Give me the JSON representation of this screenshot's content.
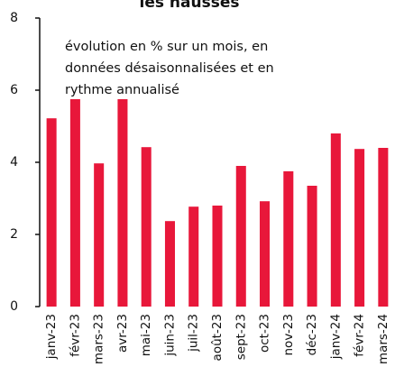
{
  "chart_data": {
    "type": "bar",
    "title": "les hausses",
    "annotation": [
      "évolution en % sur un mois, en",
      "données désaisonnalisées et en",
      "rythme annualisé"
    ],
    "categories": [
      "janv-23",
      "févr-23",
      "mars-23",
      "avr-23",
      "mai-23",
      "juin-23",
      "juil-23",
      "août-23",
      "sept-23",
      "oct-23",
      "nov-23",
      "déc-23",
      "janv-24",
      "févr-24",
      "mars-24"
    ],
    "values": [
      5.22,
      5.75,
      3.97,
      5.75,
      4.42,
      2.37,
      2.77,
      2.8,
      3.9,
      2.92,
      3.75,
      3.35,
      4.8,
      4.37,
      4.4
    ],
    "color": "#e8173a",
    "ylim": [
      0,
      8
    ],
    "yticks": [
      0,
      2,
      4,
      6,
      8
    ],
    "grid": false
  }
}
